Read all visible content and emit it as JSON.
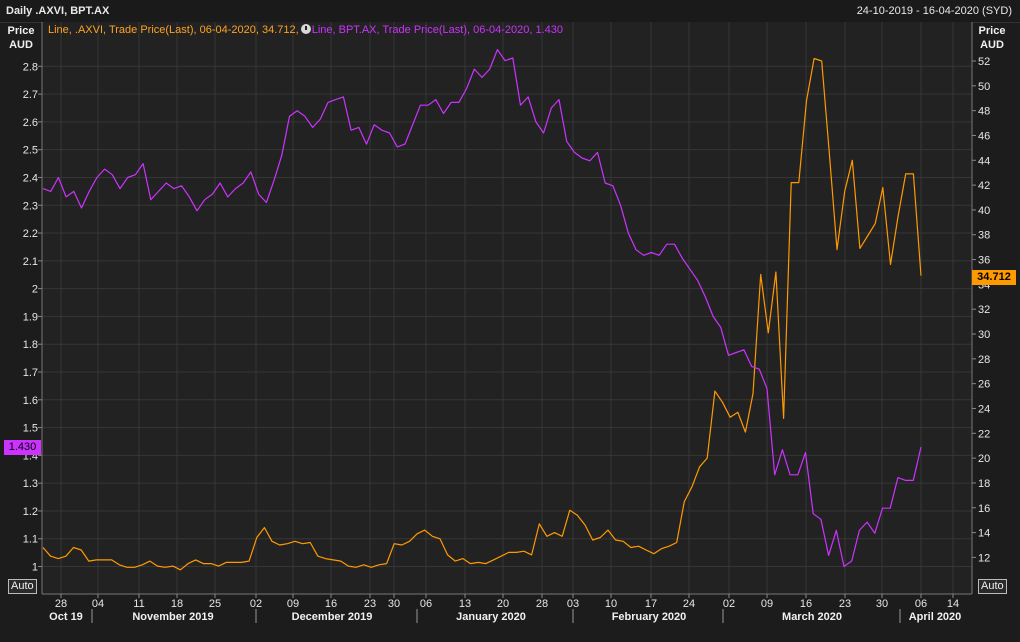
{
  "header": {
    "title": "Daily .AXVI, BPT.AX",
    "date_range": "24-10-2019 - 16-04-2020 (SYD)"
  },
  "axes": {
    "left_title_1": "Price",
    "left_title_2": "AUD",
    "right_title_1": "Price",
    "right_title_2": "AUD",
    "auto_left": "Auto",
    "auto_right": "Auto"
  },
  "legend": {
    "axvi": "Line, .AXVI, Trade Price(Last), 06-04-2020, 34.712,",
    "bpt": "Line, BPT.AX, Trade Price(Last), 06-04-2020, 1.430"
  },
  "last_values": {
    "axvi": "34.712",
    "bpt": "1.430"
  },
  "colors": {
    "axvi": "#ff9900",
    "bpt": "#cc33ff",
    "background": "#222222",
    "grid": "#363636"
  },
  "chart_data": {
    "type": "line",
    "title": "Daily .AXVI, BPT.AX",
    "x_axis": {
      "day_ticks": [
        "28",
        "04",
        "11",
        "18",
        "25",
        "02",
        "09",
        "16",
        "23",
        "30",
        "06",
        "13",
        "20",
        "28",
        "03",
        "10",
        "17",
        "24",
        "02",
        "09",
        "16",
        "23",
        "30",
        "06",
        "14"
      ],
      "month_labels": [
        "Oct 19",
        "November 2019",
        "December 2019",
        "January 2020",
        "February 2020",
        "March 2020",
        "April 2020"
      ],
      "range": [
        "24-10-2019",
        "16-04-2020"
      ]
    },
    "y_left": {
      "label": "Price AUD",
      "ticks": [
        "2.8",
        "2.7",
        "2.6",
        "2.5",
        "2.4",
        "2.3",
        "2.2",
        "2.1",
        "2",
        "1.9",
        "1.8",
        "1.7",
        "1.6",
        "1.5",
        "1.4",
        "1.3",
        "1.2",
        "1.1",
        "1"
      ],
      "range": [
        0.95,
        2.88
      ]
    },
    "y_right": {
      "label": "Price AUD",
      "ticks": [
        "52",
        "50",
        "48",
        "46",
        "44",
        "42",
        "40",
        "38",
        "36",
        "34",
        "32",
        "30",
        "28",
        "26",
        "24",
        "22",
        "20",
        "18",
        "16",
        "14",
        "12"
      ],
      "range": [
        11.0,
        53.0
      ]
    },
    "grid": true,
    "series": [
      {
        "name": ".AXVI",
        "axis": "right",
        "values": [
          12.8,
          12.1,
          11.9,
          12.1,
          12.8,
          12.6,
          11.7,
          11.8,
          11.8,
          11.8,
          11.4,
          11.2,
          11.2,
          11.4,
          11.7,
          11.3,
          11.2,
          11.3,
          11.0,
          11.5,
          11.8,
          11.5,
          11.5,
          11.3,
          11.6,
          11.6,
          11.6,
          11.7,
          13.6,
          14.4,
          13.3,
          13.0,
          13.1,
          13.3,
          13.1,
          13.2,
          12.1,
          11.9,
          11.8,
          11.7,
          11.3,
          11.2,
          11.4,
          11.2,
          11.4,
          11.5,
          13.1,
          13.0,
          13.3,
          13.9,
          14.2,
          13.7,
          13.5,
          12.2,
          11.7,
          11.9,
          11.5,
          11.6,
          11.5,
          11.8,
          12.1,
          12.4,
          12.4,
          12.5,
          12.2,
          14.7,
          13.7,
          14.0,
          13.7,
          15.8,
          15.4,
          14.6,
          13.4,
          13.6,
          14.2,
          13.4,
          13.3,
          12.8,
          12.9,
          12.6,
          12.3,
          12.7,
          12.9,
          13.2,
          16.5,
          17.7,
          19.3,
          20.0,
          25.4,
          24.5,
          23.3,
          23.7,
          22.1,
          25.2,
          34.8,
          30.1,
          35.0,
          23.2,
          42.2,
          42.2,
          48.8,
          52.2,
          52.0,
          44.5,
          36.8,
          41.5,
          44.0,
          36.9,
          37.9,
          38.9,
          41.8,
          35.6,
          39.5,
          42.9,
          42.9,
          34.7
        ]
      },
      {
        "name": "BPT.AX",
        "axis": "left",
        "values": [
          2.36,
          2.35,
          2.4,
          2.33,
          2.35,
          2.29,
          2.35,
          2.4,
          2.43,
          2.41,
          2.36,
          2.4,
          2.41,
          2.45,
          2.32,
          2.35,
          2.38,
          2.36,
          2.37,
          2.33,
          2.28,
          2.32,
          2.34,
          2.38,
          2.33,
          2.36,
          2.38,
          2.42,
          2.34,
          2.31,
          2.39,
          2.48,
          2.62,
          2.64,
          2.62,
          2.58,
          2.61,
          2.67,
          2.68,
          2.69,
          2.57,
          2.58,
          2.52,
          2.59,
          2.57,
          2.56,
          2.51,
          2.52,
          2.59,
          2.66,
          2.66,
          2.68,
          2.63,
          2.67,
          2.67,
          2.72,
          2.79,
          2.76,
          2.79,
          2.86,
          2.82,
          2.83,
          2.66,
          2.69,
          2.6,
          2.56,
          2.65,
          2.68,
          2.53,
          2.49,
          2.47,
          2.46,
          2.49,
          2.38,
          2.37,
          2.3,
          2.2,
          2.14,
          2.12,
          2.13,
          2.12,
          2.16,
          2.16,
          2.11,
          2.07,
          2.03,
          1.97,
          1.9,
          1.86,
          1.76,
          1.77,
          1.78,
          1.72,
          1.71,
          1.64,
          1.33,
          1.42,
          1.33,
          1.33,
          1.41,
          1.19,
          1.17,
          1.04,
          1.13,
          1.0,
          1.02,
          1.13,
          1.16,
          1.12,
          1.21,
          1.21,
          1.32,
          1.31,
          1.31,
          1.43
        ]
      }
    ]
  }
}
